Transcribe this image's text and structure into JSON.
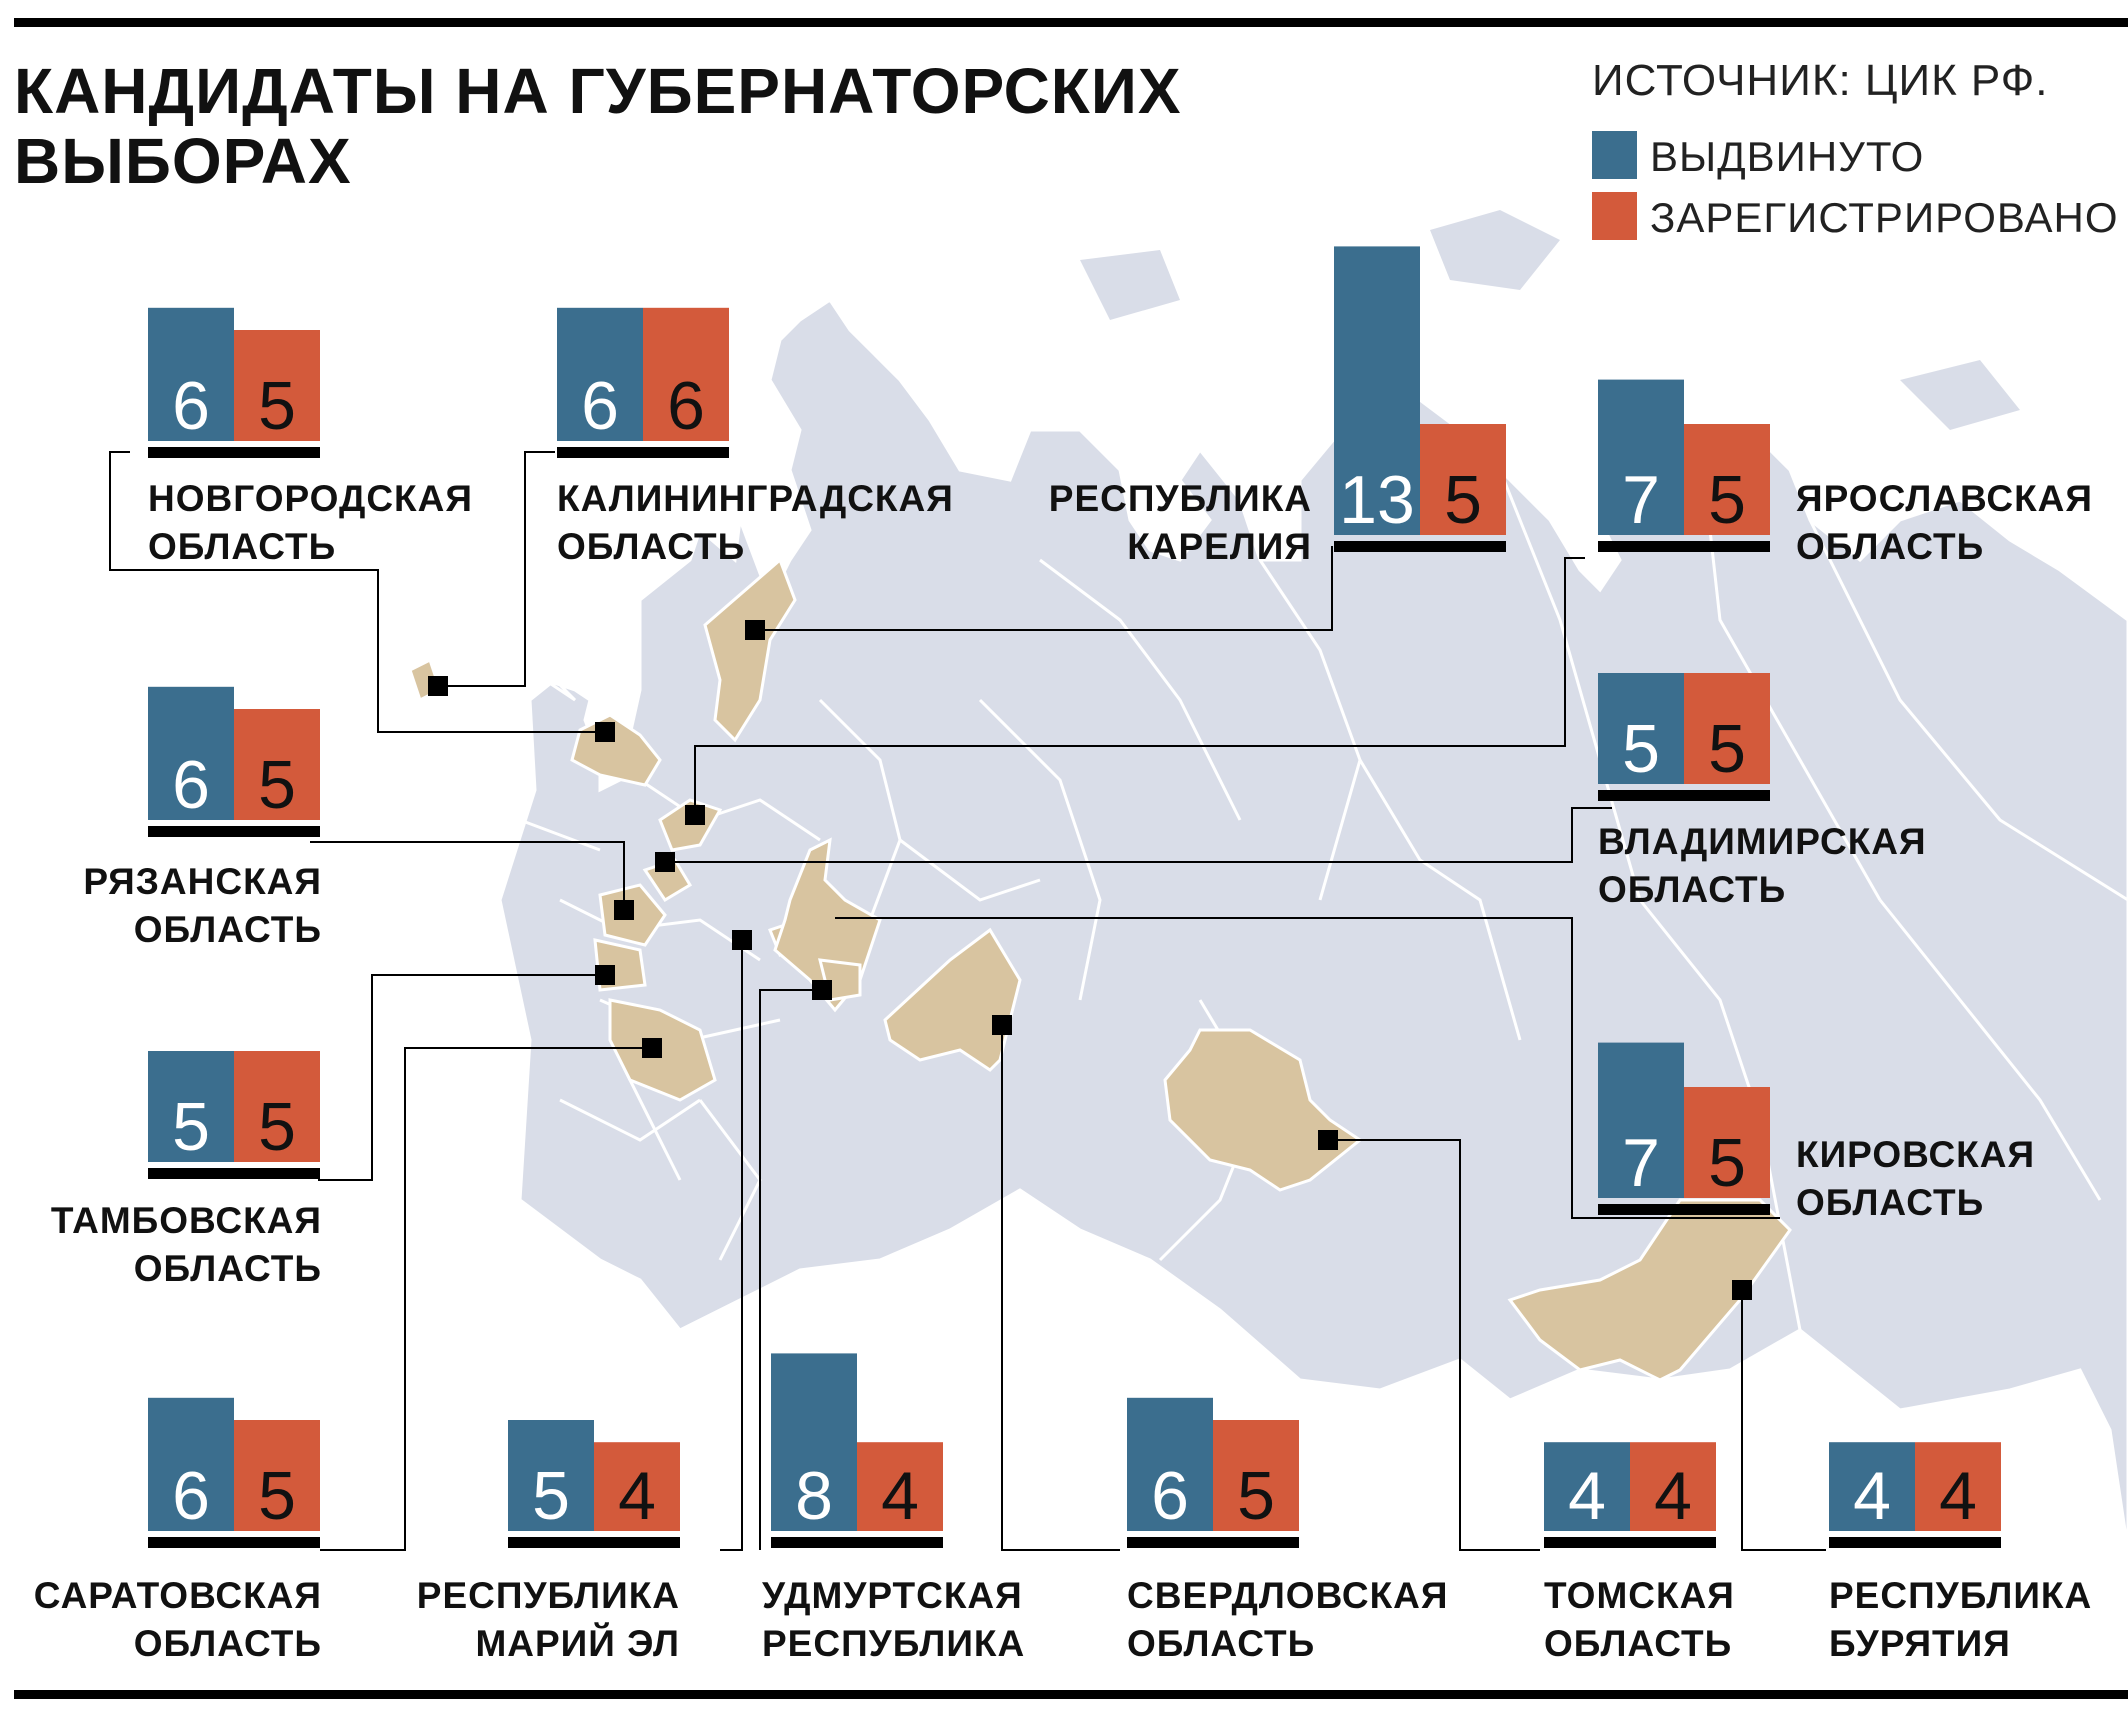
{
  "header": {
    "title_line1": "КАНДИДАТЫ НА ГУБЕРНАТОРСКИХ",
    "title_line2": "ВЫБОРАХ",
    "source": "ИСТОЧНИК: ЦИК РФ."
  },
  "legend": [
    {
      "label": "ВЫДВИНУТО",
      "color": "#3b6e8e"
    },
    {
      "label": "ЗАРЕГИСТРИРОВАНО",
      "color": "#d35a3b"
    }
  ],
  "colors": {
    "nominated": "#3b6e8e",
    "registered": "#d35a3b",
    "map_base": "#d9dde8",
    "map_highlight": "#d8c4a0",
    "borders": "#ffffff"
  },
  "chart_data": {
    "type": "bar",
    "series": [
      {
        "name": "ВЫДВИНУТО",
        "values": [
          6,
          6,
          13,
          7,
          6,
          5,
          5,
          7,
          6,
          5,
          8,
          6,
          4,
          4
        ]
      },
      {
        "name": "ЗАРЕГИСТРИРОВАНО",
        "values": [
          5,
          6,
          5,
          5,
          5,
          5,
          5,
          5,
          5,
          4,
          4,
          5,
          4,
          4
        ]
      }
    ],
    "categories": [
      "НОВГОРОДСКАЯ ОБЛАСТЬ",
      "КАЛИНИНГРАДСКАЯ ОБЛАСТЬ",
      "РЕСПУБЛИКА КАРЕЛИЯ",
      "ЯРОСЛАВСКАЯ ОБЛАСТЬ",
      "РЯЗАНСКАЯ ОБЛАСТЬ",
      "ВЛАДИМИРСКАЯ ОБЛАСТЬ",
      "ТАМБОВСКАЯ ОБЛАСТЬ",
      "КИРОВСКАЯ ОБЛАСТЬ",
      "САРАТОВСКАЯ ОБЛАСТЬ",
      "РЕСПУБЛИКА МАРИЙ ЭЛ",
      "УДМУРТСКАЯ РЕСПУБЛИКА",
      "СВЕРДЛОВСКАЯ ОБЛАСТЬ",
      "ТОМСКАЯ ОБЛАСТЬ",
      "РЕСПУБЛИКА БУРЯТИЯ"
    ],
    "regions": [
      {
        "id": "novgorod",
        "line1": "НОВГОРОДСКАЯ",
        "line2": "ОБЛАСТЬ",
        "nominated": 6,
        "registered": 5
      },
      {
        "id": "kaliningrad",
        "line1": "КАЛИНИНГРАДСКАЯ",
        "line2": "ОБЛАСТЬ",
        "nominated": 6,
        "registered": 6
      },
      {
        "id": "karelia",
        "line1": "РЕСПУБЛИКА",
        "line2": "КАРЕЛИЯ",
        "nominated": 13,
        "registered": 5
      },
      {
        "id": "yaroslavl",
        "line1": "ЯРОСЛАВСКАЯ",
        "line2": "ОБЛАСТЬ",
        "nominated": 7,
        "registered": 5
      },
      {
        "id": "ryazan",
        "line1": "РЯЗАНСКАЯ",
        "line2": "ОБЛАСТЬ",
        "nominated": 6,
        "registered": 5
      },
      {
        "id": "vladimir",
        "line1": "ВЛАДИМИРСКАЯ",
        "line2": "ОБЛАСТЬ",
        "nominated": 5,
        "registered": 5
      },
      {
        "id": "tambov",
        "line1": "ТАМБОВСКАЯ",
        "line2": "ОБЛАСТЬ",
        "nominated": 5,
        "registered": 5
      },
      {
        "id": "kirov",
        "line1": "КИРОВСКАЯ",
        "line2": "ОБЛАСТЬ",
        "nominated": 7,
        "registered": 5
      },
      {
        "id": "saratov",
        "line1": "САРАТОВСКАЯ",
        "line2": "ОБЛАСТЬ",
        "nominated": 6,
        "registered": 5
      },
      {
        "id": "mariel",
        "line1": "РЕСПУБЛИКА",
        "line2": "МАРИЙ ЭЛ",
        "nominated": 5,
        "registered": 4
      },
      {
        "id": "udmurtia",
        "line1": "УДМУРТСКАЯ",
        "line2": "РЕСПУБЛИКА",
        "nominated": 8,
        "registered": 4
      },
      {
        "id": "sverdlovsk",
        "line1": "СВЕРДЛОВСКАЯ",
        "line2": "ОБЛАСТЬ",
        "nominated": 6,
        "registered": 5
      },
      {
        "id": "tomsk",
        "line1": "ТОМСКАЯ",
        "line2": "ОБЛАСТЬ",
        "nominated": 4,
        "registered": 4
      },
      {
        "id": "buryatia",
        "line1": "РЕСПУБЛИКА",
        "line2": "БУРЯТИЯ",
        "nominated": 4,
        "registered": 4
      }
    ]
  }
}
